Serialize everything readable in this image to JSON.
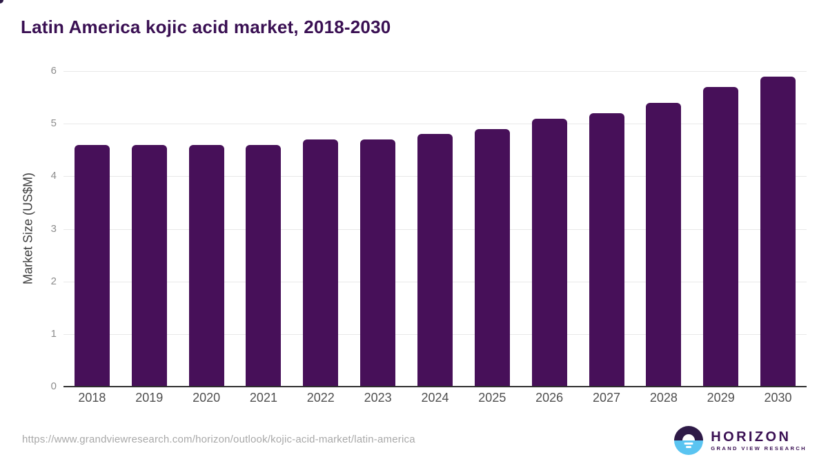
{
  "title": "Latin America kojic acid market, 2018-2030",
  "chart_data": {
    "type": "bar",
    "title": "Latin America kojic acid market, 2018-2030",
    "categories": [
      "2018",
      "2019",
      "2020",
      "2021",
      "2022",
      "2023",
      "2024",
      "2025",
      "2026",
      "2027",
      "2028",
      "2029",
      "2030"
    ],
    "values": [
      4.6,
      4.6,
      4.6,
      4.6,
      4.7,
      4.7,
      4.8,
      4.9,
      5.1,
      5.2,
      5.4,
      5.7,
      5.9
    ],
    "xlabel": "",
    "ylabel": "Market Size (US$M)",
    "ylim": [
      0,
      6
    ],
    "yticks": [
      0,
      1,
      2,
      3,
      4,
      5,
      6
    ],
    "grid": "horizontal",
    "legend": "none",
    "bar_color": "#471059"
  },
  "footer": {
    "source_url": "https://www.grandviewresearch.com/horizon/outlook/kojic-acid-market/latin-america",
    "logo": {
      "name": "HORIZON",
      "subtitle": "GRAND VIEW RESEARCH",
      "mark": "sunset-horizon-icon",
      "purple": "#2e1a47",
      "blue": "#5ac4f1"
    }
  }
}
